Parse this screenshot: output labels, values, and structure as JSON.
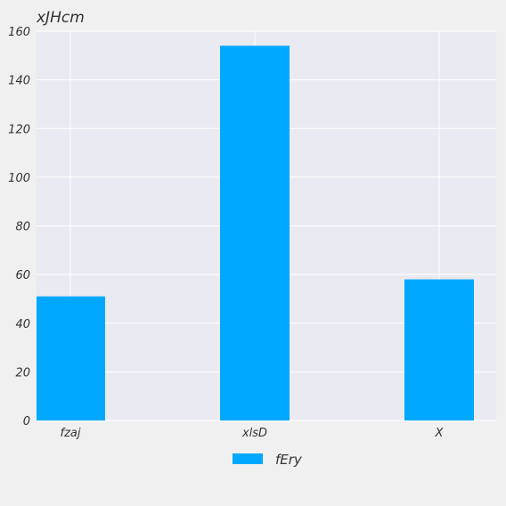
{
  "chart_data": {
    "type": "bar",
    "title": "xJHcm",
    "xlabel": "",
    "ylabel": "",
    "categories": [
      "fzaj",
      "xlsD",
      "X"
    ],
    "series": [
      {
        "name": "fEry",
        "values": [
          51,
          154,
          58
        ],
        "color": "#00a8ff"
      }
    ],
    "ylim": [
      0,
      160
    ],
    "yticks": [
      0,
      20,
      40,
      60,
      80,
      100,
      120,
      140,
      160
    ],
    "grid": true,
    "legend_position": "bottom-center",
    "plot_background": "#eaeaf2",
    "figure_background": "#f0f0f0"
  }
}
